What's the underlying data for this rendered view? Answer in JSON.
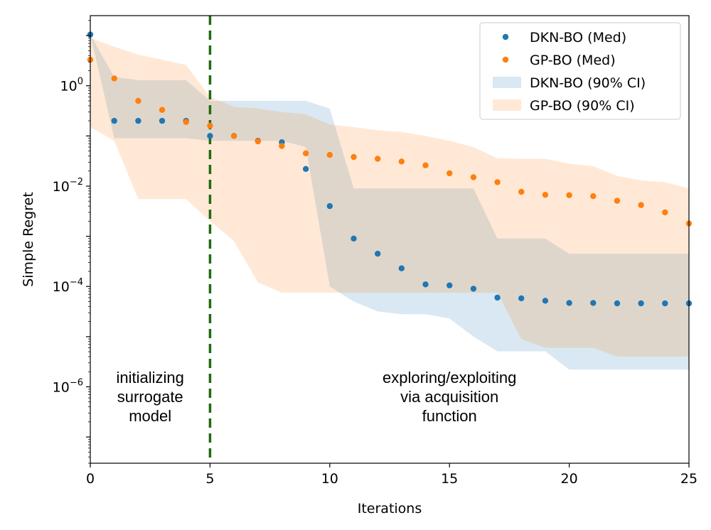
{
  "chart_data": {
    "type": "scatter",
    "xlabel": "Iterations",
    "ylabel": "Simple Regret",
    "x_scale": "linear",
    "y_scale": "log",
    "xlim": [
      0,
      25
    ],
    "ylim": [
      3e-08,
      25
    ],
    "x_ticks": [
      0,
      5,
      10,
      15,
      20,
      25
    ],
    "y_ticks": [
      {
        "value": 1,
        "label": "10^0"
      },
      {
        "value": 0.01,
        "label": "10^-2"
      },
      {
        "value": 0.0001,
        "label": "10^-4"
      },
      {
        "value": 1e-06,
        "label": "10^-6"
      }
    ],
    "grid": false,
    "legend_position": "top-right",
    "x": [
      0,
      1,
      2,
      3,
      4,
      5,
      6,
      7,
      8,
      9,
      10,
      11,
      12,
      13,
      14,
      15,
      16,
      17,
      18,
      19,
      20,
      21,
      22,
      23,
      24,
      25
    ],
    "series": [
      {
        "name": "DKN-BO (Med)",
        "kind": "points",
        "color": "#1f77b4",
        "values": [
          10.5,
          0.2,
          0.2,
          0.2,
          0.2,
          0.1,
          0.1,
          0.08,
          0.075,
          0.022,
          0.004,
          0.0009,
          0.00045,
          0.00023,
          0.00011,
          0.000105,
          9e-05,
          6e-05,
          5.8e-05,
          5.2e-05,
          4.7e-05,
          4.7e-05,
          4.6e-05,
          4.6e-05,
          4.6e-05,
          4.6e-05
        ]
      },
      {
        "name": "GP-BO (Med)",
        "kind": "points",
        "color": "#ff7f0e",
        "values": [
          3.3,
          1.4,
          0.5,
          0.33,
          0.19,
          0.16,
          0.1,
          0.078,
          0.063,
          0.045,
          0.042,
          0.038,
          0.035,
          0.031,
          0.026,
          0.018,
          0.015,
          0.012,
          0.0077,
          0.0067,
          0.0066,
          0.0063,
          0.0051,
          0.0042,
          0.003,
          0.0018
        ]
      },
      {
        "name": "DKN-BO (90% CI)",
        "kind": "band",
        "color": "#1f77b4",
        "opacity": 0.17,
        "upper": [
          10.5,
          1.5,
          1.3,
          1.3,
          1.3,
          0.5,
          0.5,
          0.5,
          0.5,
          0.5,
          0.35,
          0.009,
          0.009,
          0.009,
          0.009,
          0.009,
          0.009,
          0.0009,
          0.0009,
          0.0009,
          0.00045,
          0.00045,
          0.00045,
          0.00045,
          0.00045,
          0.00045
        ],
        "lower": [
          10.5,
          0.09,
          0.09,
          0.09,
          0.09,
          0.08,
          0.08,
          0.08,
          0.08,
          0.06,
          0.0001,
          5e-05,
          3.2e-05,
          2.8e-05,
          2.8e-05,
          2.3e-05,
          1e-05,
          5.1e-06,
          5.1e-06,
          5.1e-06,
          2.2e-06,
          2.2e-06,
          2.2e-06,
          2.2e-06,
          2.2e-06,
          2.2e-06
        ]
      },
      {
        "name": "GP-BO (90% CI)",
        "kind": "band",
        "color": "#ff7f0e",
        "opacity": 0.17,
        "upper": [
          9,
          6,
          4.2,
          3.3,
          2.6,
          0.6,
          0.38,
          0.35,
          0.3,
          0.27,
          0.17,
          0.15,
          0.13,
          0.12,
          0.1,
          0.08,
          0.06,
          0.036,
          0.035,
          0.035,
          0.028,
          0.025,
          0.016,
          0.013,
          0.012,
          0.009
        ],
        "lower": [
          0.15,
          0.08,
          0.0055,
          0.0055,
          0.0055,
          0.002,
          0.0008,
          0.00012,
          7.5e-05,
          7.5e-05,
          7.5e-05,
          7.5e-05,
          7.5e-05,
          7.5e-05,
          7.5e-05,
          7.5e-05,
          7.5e-05,
          7.5e-05,
          9e-06,
          6e-06,
          6e-06,
          6e-06,
          4e-06,
          4e-06,
          4e-06,
          4e-06
        ]
      }
    ],
    "vline": {
      "x": 5,
      "color": "#1f6b0f",
      "style": "dashed"
    },
    "annotations": [
      {
        "text_lines": [
          "initializing",
          "surrogate",
          "model"
        ],
        "x": 2.5,
        "y": 1.2e-06
      },
      {
        "text_lines": [
          "exploring/exploiting",
          "via acquisition",
          "function"
        ],
        "x": 15,
        "y": 1.2e-06
      }
    ]
  }
}
